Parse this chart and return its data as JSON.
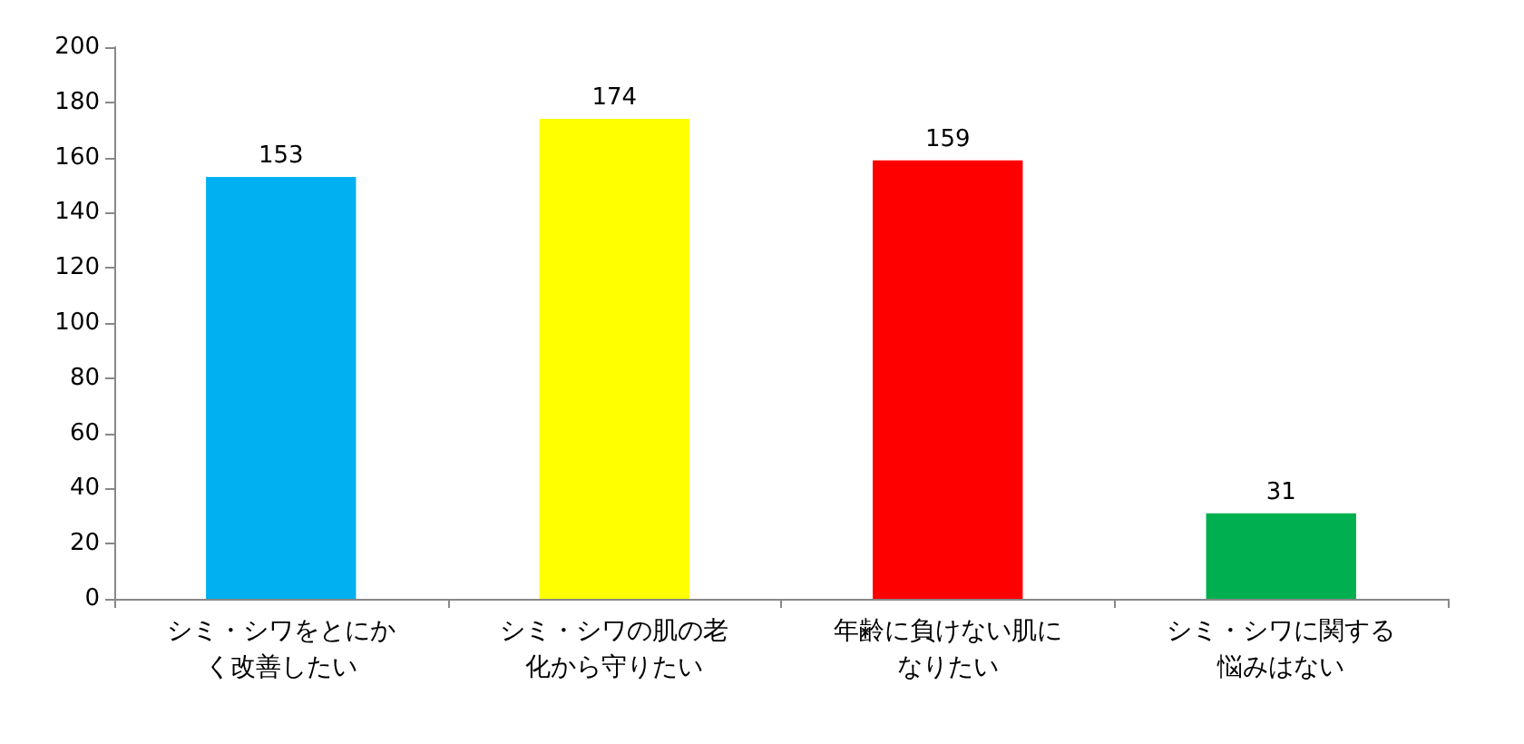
{
  "chart_data": {
    "type": "bar",
    "categories": [
      "シミ・シワをとにかく改善したい",
      "シミ・シワの肌の老化から守りたい",
      "年齢に負けない肌になりたい",
      "シミ・シワに関する悩みはない"
    ],
    "values": [
      153,
      174,
      159,
      31
    ],
    "colors": [
      "#00b0f0",
      "#ffff00",
      "#ff0000",
      "#00b050"
    ],
    "ylim": [
      0,
      200
    ],
    "yticks": [
      0,
      20,
      40,
      60,
      80,
      100,
      120,
      140,
      160,
      180,
      200
    ],
    "data_labels": true,
    "grid": false
  }
}
